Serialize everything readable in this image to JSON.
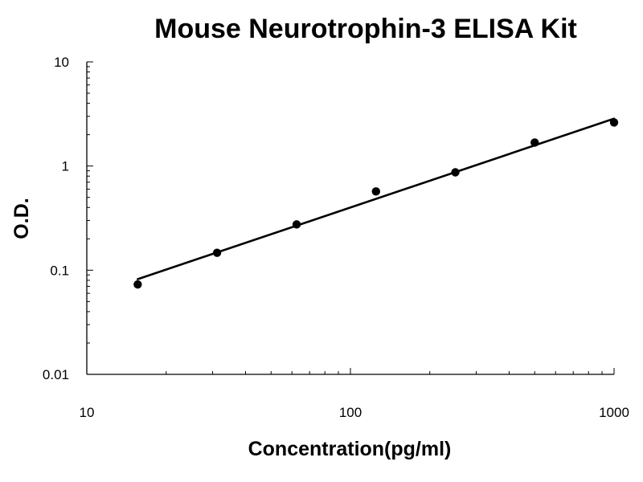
{
  "chart_data": {
    "type": "scatter",
    "title": "Mouse Neurotrophin-3  ELISA Kit",
    "xlabel": "Concentration(pg/ml)",
    "ylabel": "O.D.",
    "x_scale": "log",
    "y_scale": "log",
    "xlim": [
      10,
      1000
    ],
    "ylim": [
      0.01,
      10
    ],
    "x_ticks": [
      {
        "value": 10,
        "label": "10"
      },
      {
        "value": 100,
        "label": "100"
      },
      {
        "value": 1000,
        "label": "1000"
      }
    ],
    "y_ticks": [
      {
        "value": 0.01,
        "label": "0.01"
      },
      {
        "value": 0.1,
        "label": "0.1"
      },
      {
        "value": 1,
        "label": "1"
      },
      {
        "value": 10,
        "label": "10"
      }
    ],
    "grid": false,
    "legend": "none",
    "series": [
      {
        "points": [
          {
            "x": 15.6,
            "y": 0.073
          },
          {
            "x": 31.2,
            "y": 0.147
          },
          {
            "x": 62.5,
            "y": 0.275
          },
          {
            "x": 125,
            "y": 0.57
          },
          {
            "x": 250,
            "y": 0.87
          },
          {
            "x": 500,
            "y": 1.68
          },
          {
            "x": 1000,
            "y": 2.62
          }
        ],
        "color": "#000000"
      }
    ],
    "fit_line": {
      "type": "power",
      "x_range": [
        15.6,
        1000
      ],
      "y_range": [
        0.082,
        2.85
      ],
      "color": "#000000"
    }
  }
}
